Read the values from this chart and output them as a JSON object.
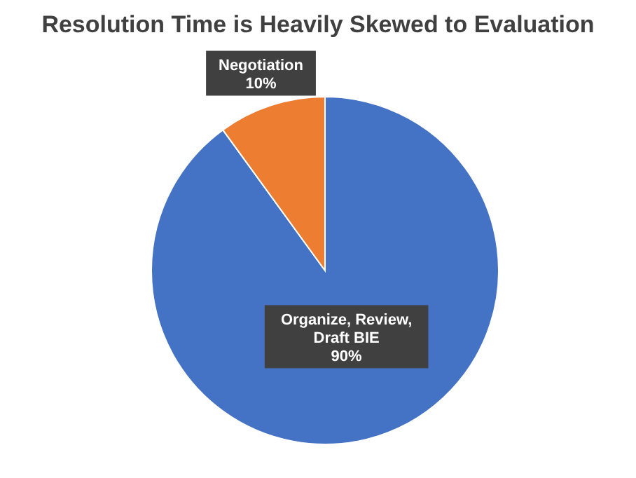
{
  "chart_data": {
    "type": "pie",
    "title": "Resolution Time is Heavily Skewed to Evaluation",
    "categories": [
      "Organize, Review, Draft BIE",
      "Negotiation"
    ],
    "values": [
      90,
      10
    ],
    "colors": [
      "#4472c4",
      "#ed7d31"
    ],
    "value_labels": [
      "90%",
      "10%"
    ]
  }
}
